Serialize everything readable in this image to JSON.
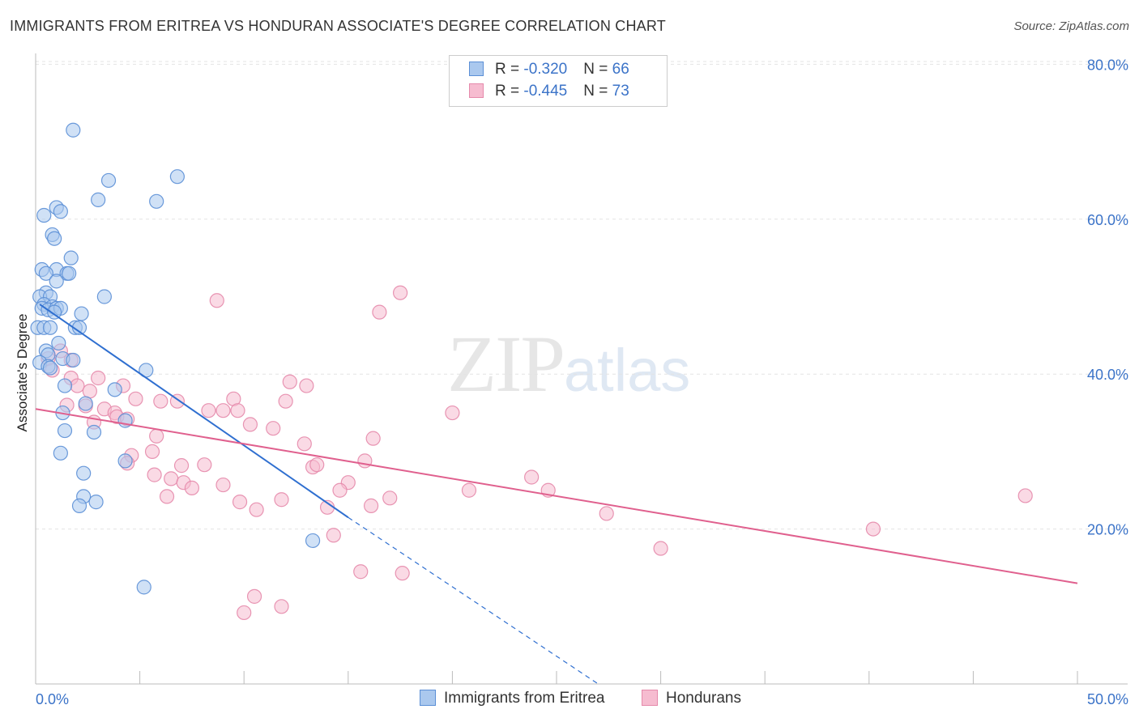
{
  "header": {
    "title": "IMMIGRANTS FROM ERITREA VS HONDURAN ASSOCIATE'S DEGREE CORRELATION CHART",
    "source": "Source: ZipAtlas.com"
  },
  "watermark": {
    "zip": "ZIP",
    "atlas": "atlas"
  },
  "legend": {
    "rows": [
      {
        "r_label": "R = ",
        "r_value": "-0.320",
        "n_label": "N = ",
        "n_value": "66"
      },
      {
        "r_label": "R = ",
        "r_value": "-0.445",
        "n_label": "N = ",
        "n_value": "73"
      }
    ]
  },
  "colors": {
    "blue_fill": "#aac8ee",
    "blue_stroke": "#5b8fd6",
    "blue_line": "#2f6fd0",
    "pink_fill": "#f6bcd0",
    "pink_stroke": "#e58aab",
    "pink_line": "#e0608e",
    "grid": "#e3e3e3",
    "tick_text": "#3b73c8"
  },
  "chart_data": {
    "type": "scatter",
    "xlabel": "",
    "ylabel": "Associate's Degree",
    "xlim": [
      0,
      50
    ],
    "ylim": [
      0,
      85
    ],
    "x_tick_labels": [
      "0.0%",
      "50.0%"
    ],
    "y_ticks": [
      20,
      40,
      60,
      80
    ],
    "y_tick_labels": [
      "20.0%",
      "40.0%",
      "60.0%",
      "80.0%"
    ],
    "grid": true,
    "legend_position": "top-center",
    "series": [
      {
        "name": "Immigrants from Eritrea",
        "trend": {
          "x": [
            0.2,
            15.0
          ],
          "y": [
            49.0,
            21.5
          ]
        },
        "trend_extension": {
          "x": [
            15.0,
            27.0
          ],
          "y": [
            21.5,
            0.0
          ]
        },
        "points": [
          [
            1.8,
            71.5
          ],
          [
            3.5,
            65.0
          ],
          [
            6.8,
            65.5
          ],
          [
            5.8,
            62.3
          ],
          [
            3.0,
            62.5
          ],
          [
            1.0,
            61.5
          ],
          [
            1.2,
            61.0
          ],
          [
            0.4,
            60.5
          ],
          [
            0.8,
            58.0
          ],
          [
            0.9,
            57.5
          ],
          [
            1.7,
            55.0
          ],
          [
            0.3,
            53.5
          ],
          [
            1.0,
            53.5
          ],
          [
            1.5,
            53.0
          ],
          [
            1.6,
            53.0
          ],
          [
            0.5,
            53.0
          ],
          [
            1.0,
            52.0
          ],
          [
            0.5,
            50.5
          ],
          [
            0.2,
            50.0
          ],
          [
            0.7,
            50.0
          ],
          [
            3.3,
            50.0
          ],
          [
            0.4,
            49.0
          ],
          [
            0.8,
            48.7
          ],
          [
            0.3,
            48.5
          ],
          [
            0.6,
            48.3
          ],
          [
            1.0,
            48.5
          ],
          [
            1.2,
            48.5
          ],
          [
            0.9,
            48.0
          ],
          [
            2.2,
            47.8
          ],
          [
            0.1,
            46.0
          ],
          [
            0.4,
            46.0
          ],
          [
            0.7,
            46.0
          ],
          [
            1.9,
            46.0
          ],
          [
            2.1,
            46.0
          ],
          [
            1.1,
            44.0
          ],
          [
            0.5,
            43.0
          ],
          [
            0.6,
            42.5
          ],
          [
            1.3,
            42.0
          ],
          [
            1.8,
            41.8
          ],
          [
            0.2,
            41.5
          ],
          [
            0.6,
            41.0
          ],
          [
            0.7,
            40.8
          ],
          [
            5.3,
            40.5
          ],
          [
            1.4,
            38.5
          ],
          [
            3.8,
            38.0
          ],
          [
            2.4,
            36.2
          ],
          [
            1.3,
            35.0
          ],
          [
            4.3,
            34.0
          ],
          [
            1.4,
            32.7
          ],
          [
            2.8,
            32.5
          ],
          [
            1.2,
            29.8
          ],
          [
            4.3,
            28.8
          ],
          [
            2.3,
            27.2
          ],
          [
            2.3,
            24.2
          ],
          [
            2.9,
            23.5
          ],
          [
            2.1,
            23.0
          ],
          [
            13.3,
            18.5
          ],
          [
            5.2,
            12.5
          ]
        ]
      },
      {
        "name": "Hondurans",
        "trend": {
          "x": [
            0.0,
            50.0
          ],
          "y": [
            35.5,
            13.0
          ]
        },
        "points": [
          [
            17.5,
            50.5
          ],
          [
            8.7,
            49.5
          ],
          [
            16.5,
            48.0
          ],
          [
            1.2,
            43.0
          ],
          [
            0.6,
            42.0
          ],
          [
            1.7,
            41.8
          ],
          [
            0.8,
            40.5
          ],
          [
            12.2,
            39.0
          ],
          [
            3.0,
            39.5
          ],
          [
            1.7,
            39.5
          ],
          [
            2.0,
            38.5
          ],
          [
            13.0,
            38.5
          ],
          [
            4.2,
            38.5
          ],
          [
            2.6,
            37.8
          ],
          [
            1.5,
            36.0
          ],
          [
            4.8,
            36.8
          ],
          [
            6.0,
            36.5
          ],
          [
            6.8,
            36.5
          ],
          [
            9.5,
            36.8
          ],
          [
            12.0,
            36.5
          ],
          [
            2.4,
            35.9
          ],
          [
            3.3,
            35.5
          ],
          [
            8.3,
            35.3
          ],
          [
            9.0,
            35.3
          ],
          [
            9.7,
            35.3
          ],
          [
            3.8,
            35.0
          ],
          [
            3.9,
            34.5
          ],
          [
            4.4,
            34.2
          ],
          [
            20.0,
            35.0
          ],
          [
            10.3,
            33.5
          ],
          [
            2.8,
            33.8
          ],
          [
            11.4,
            33.0
          ],
          [
            5.8,
            32.0
          ],
          [
            16.2,
            31.7
          ],
          [
            12.9,
            31.0
          ],
          [
            5.6,
            30.0
          ],
          [
            4.6,
            29.5
          ],
          [
            15.8,
            28.8
          ],
          [
            4.4,
            28.5
          ],
          [
            7.0,
            28.2
          ],
          [
            8.1,
            28.3
          ],
          [
            13.3,
            28.0
          ],
          [
            13.5,
            28.3
          ],
          [
            5.7,
            27.0
          ],
          [
            23.8,
            26.7
          ],
          [
            6.5,
            26.5
          ],
          [
            7.1,
            26.0
          ],
          [
            15.0,
            26.0
          ],
          [
            9.0,
            25.7
          ],
          [
            7.5,
            25.3
          ],
          [
            14.6,
            25.0
          ],
          [
            20.8,
            25.0
          ],
          [
            24.6,
            25.0
          ],
          [
            6.3,
            24.2
          ],
          [
            17.0,
            24.0
          ],
          [
            11.8,
            23.8
          ],
          [
            9.8,
            23.5
          ],
          [
            16.1,
            23.0
          ],
          [
            14.0,
            22.8
          ],
          [
            10.6,
            22.5
          ],
          [
            27.4,
            22.0
          ],
          [
            47.5,
            24.3
          ],
          [
            40.2,
            20.0
          ],
          [
            14.3,
            19.2
          ],
          [
            30.0,
            17.5
          ],
          [
            15.6,
            14.5
          ],
          [
            17.6,
            14.3
          ],
          [
            10.5,
            11.3
          ],
          [
            11.8,
            10.0
          ],
          [
            10.0,
            9.2
          ]
        ]
      }
    ]
  }
}
